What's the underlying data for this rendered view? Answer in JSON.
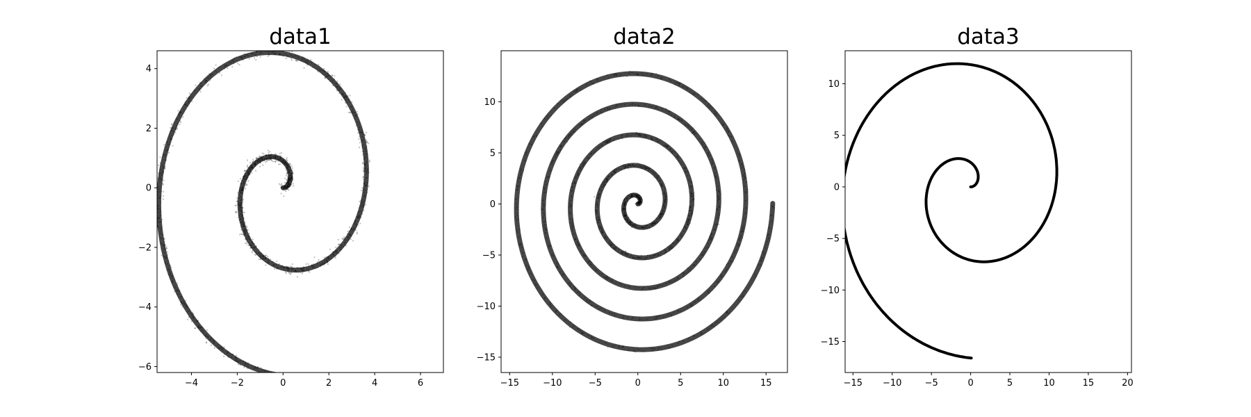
{
  "chart_data": [
    {
      "type": "scatter",
      "title": "data1",
      "xlabel": "",
      "ylabel": "",
      "xlim": [
        -5.5,
        7.0
      ],
      "ylim": [
        -6.2,
        4.6
      ],
      "xticks": [
        -4,
        -2,
        0,
        2,
        4,
        6
      ],
      "yticks": [
        -6,
        -4,
        -2,
        0,
        2,
        4
      ],
      "xtick_labels": [
        "−4",
        "−2",
        "0",
        "2",
        "4",
        "6"
      ],
      "ytick_labels": [
        "−6",
        "−4",
        "−2",
        "0",
        "2",
        "4"
      ],
      "grid": false,
      "point_color": "#000000",
      "spiral": {
        "turns": 1.75,
        "t_max": 11.0,
        "scale_x": 0.5725,
        "scale_y": 0.5735,
        "phase_deg": 0,
        "noise": 0.08
      }
    },
    {
      "type": "scatter",
      "title": "data2",
      "xlabel": "",
      "ylabel": "",
      "xlim": [
        -16.0,
        17.5
      ],
      "ylim": [
        -16.5,
        15.0
      ],
      "xticks": [
        -15,
        -10,
        -5,
        0,
        5,
        10,
        15
      ],
      "yticks": [
        -15,
        -10,
        -5,
        0,
        5,
        10
      ],
      "xtick_labels": [
        "−15",
        "−10",
        "−5",
        "0",
        "5",
        "10",
        "15"
      ],
      "ytick_labels": [
        "−15",
        "−10",
        "−5",
        "0",
        "5",
        "10"
      ],
      "grid": false,
      "point_color": "#000000",
      "spiral": {
        "turns": 5.0,
        "t_max": 31.42,
        "scale_x": 0.5021,
        "scale_y": 0.4775,
        "phase_deg": 0,
        "noise": 0.1
      }
    },
    {
      "type": "scatter",
      "title": "data3",
      "xlabel": "",
      "ylabel": "",
      "xlim": [
        -16.0,
        20.5
      ],
      "ylim": [
        -18.0,
        13.2
      ],
      "xticks": [
        -15,
        -10,
        -5,
        0,
        5,
        10,
        15,
        20
      ],
      "yticks": [
        -15,
        -10,
        -5,
        0,
        5,
        10
      ],
      "xtick_labels": [
        "−15",
        "−10",
        "−5",
        "0",
        "5",
        "10",
        "15",
        "20"
      ],
      "ytick_labels": [
        "−15",
        "−10",
        "−5",
        "0",
        "5",
        "10"
      ],
      "grid": false,
      "point_color": "#000000",
      "spiral": {
        "turns": 1.75,
        "t_max": 11.0,
        "scale_x": 1.7273,
        "scale_y": 1.509,
        "phase_deg": 0,
        "noise": 0.0
      }
    }
  ]
}
